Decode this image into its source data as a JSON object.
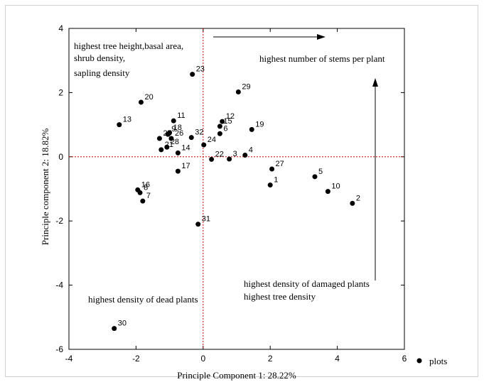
{
  "chart_data": {
    "type": "scatter",
    "xlabel": "Principle Component 1: 28.22%",
    "ylabel": "Principle component 2: 18.82%",
    "xlim": [
      -4,
      6
    ],
    "ylim": [
      -6,
      4
    ],
    "xticks": [
      "-4",
      "-2",
      "0",
      "2",
      "4",
      "6"
    ],
    "yticks": [
      "-6",
      "-4",
      "-2",
      "0",
      "2",
      "4"
    ],
    "legend": {
      "label": "plots",
      "placement": "bottom-right"
    },
    "reference_lines": {
      "x": 0,
      "y": 0,
      "color": "#cc0000"
    },
    "points": [
      {
        "label": "1",
        "x": 2.0,
        "y": -0.88
      },
      {
        "label": "2",
        "x": 4.45,
        "y": -1.45
      },
      {
        "label": "3",
        "x": 0.78,
        "y": -0.07
      },
      {
        "label": "4",
        "x": 1.25,
        "y": 0.05
      },
      {
        "label": "5",
        "x": 3.33,
        "y": -0.62
      },
      {
        "label": "6",
        "x": 0.5,
        "y": 0.72
      },
      {
        "label": "7",
        "x": -1.8,
        "y": -1.38
      },
      {
        "label": "8",
        "x": -1.88,
        "y": -1.12
      },
      {
        "label": "9",
        "x": -1.05,
        "y": 0.7
      },
      {
        "label": "10",
        "x": 3.72,
        "y": -1.08
      },
      {
        "label": "11",
        "x": -0.88,
        "y": 1.12
      },
      {
        "label": "12",
        "x": 0.57,
        "y": 1.1
      },
      {
        "label": "13",
        "x": -2.5,
        "y": 1.0
      },
      {
        "label": "14",
        "x": -0.75,
        "y": 0.12
      },
      {
        "label": "15",
        "x": 0.5,
        "y": 0.95
      },
      {
        "label": "16",
        "x": -1.95,
        "y": -1.03
      },
      {
        "label": "17",
        "x": -0.75,
        "y": -0.45
      },
      {
        "label": "19",
        "x": 1.45,
        "y": 0.85
      },
      {
        "label": "20",
        "x": -1.85,
        "y": 1.7
      },
      {
        "label": "21",
        "x": -1.25,
        "y": 0.22
      },
      {
        "label": "22",
        "x": 0.25,
        "y": -0.08
      },
      {
        "label": "23",
        "x": -0.32,
        "y": 2.57
      },
      {
        "label": "24",
        "x": 0.02,
        "y": 0.37
      },
      {
        "label": "25",
        "x": -1.3,
        "y": 0.57
      },
      {
        "label": "26",
        "x": -0.95,
        "y": 0.57
      },
      {
        "label": "27",
        "x": 2.05,
        "y": -0.38
      },
      {
        "label": "28",
        "x": -1.08,
        "y": 0.3
      },
      {
        "label": "29",
        "x": 1.05,
        "y": 2.02
      },
      {
        "label": "30",
        "x": -2.65,
        "y": -5.35
      },
      {
        "label": "31",
        "x": -0.15,
        "y": -2.1
      },
      {
        "label": "32",
        "x": -0.35,
        "y": 0.6
      },
      {
        "label": "18",
        "x": -1.0,
        "y": 0.75
      }
    ],
    "annotations": [
      {
        "lines": [
          "highest tree height,basal area,",
          "shrub density,",
          "sapling density"
        ]
      },
      {
        "lines": [
          "highest number of stems per plant"
        ]
      },
      {
        "lines": [
          "highest density of damaged plants",
          "highest tree density"
        ]
      },
      {
        "lines": [
          "highest density of dead plants"
        ]
      }
    ]
  }
}
